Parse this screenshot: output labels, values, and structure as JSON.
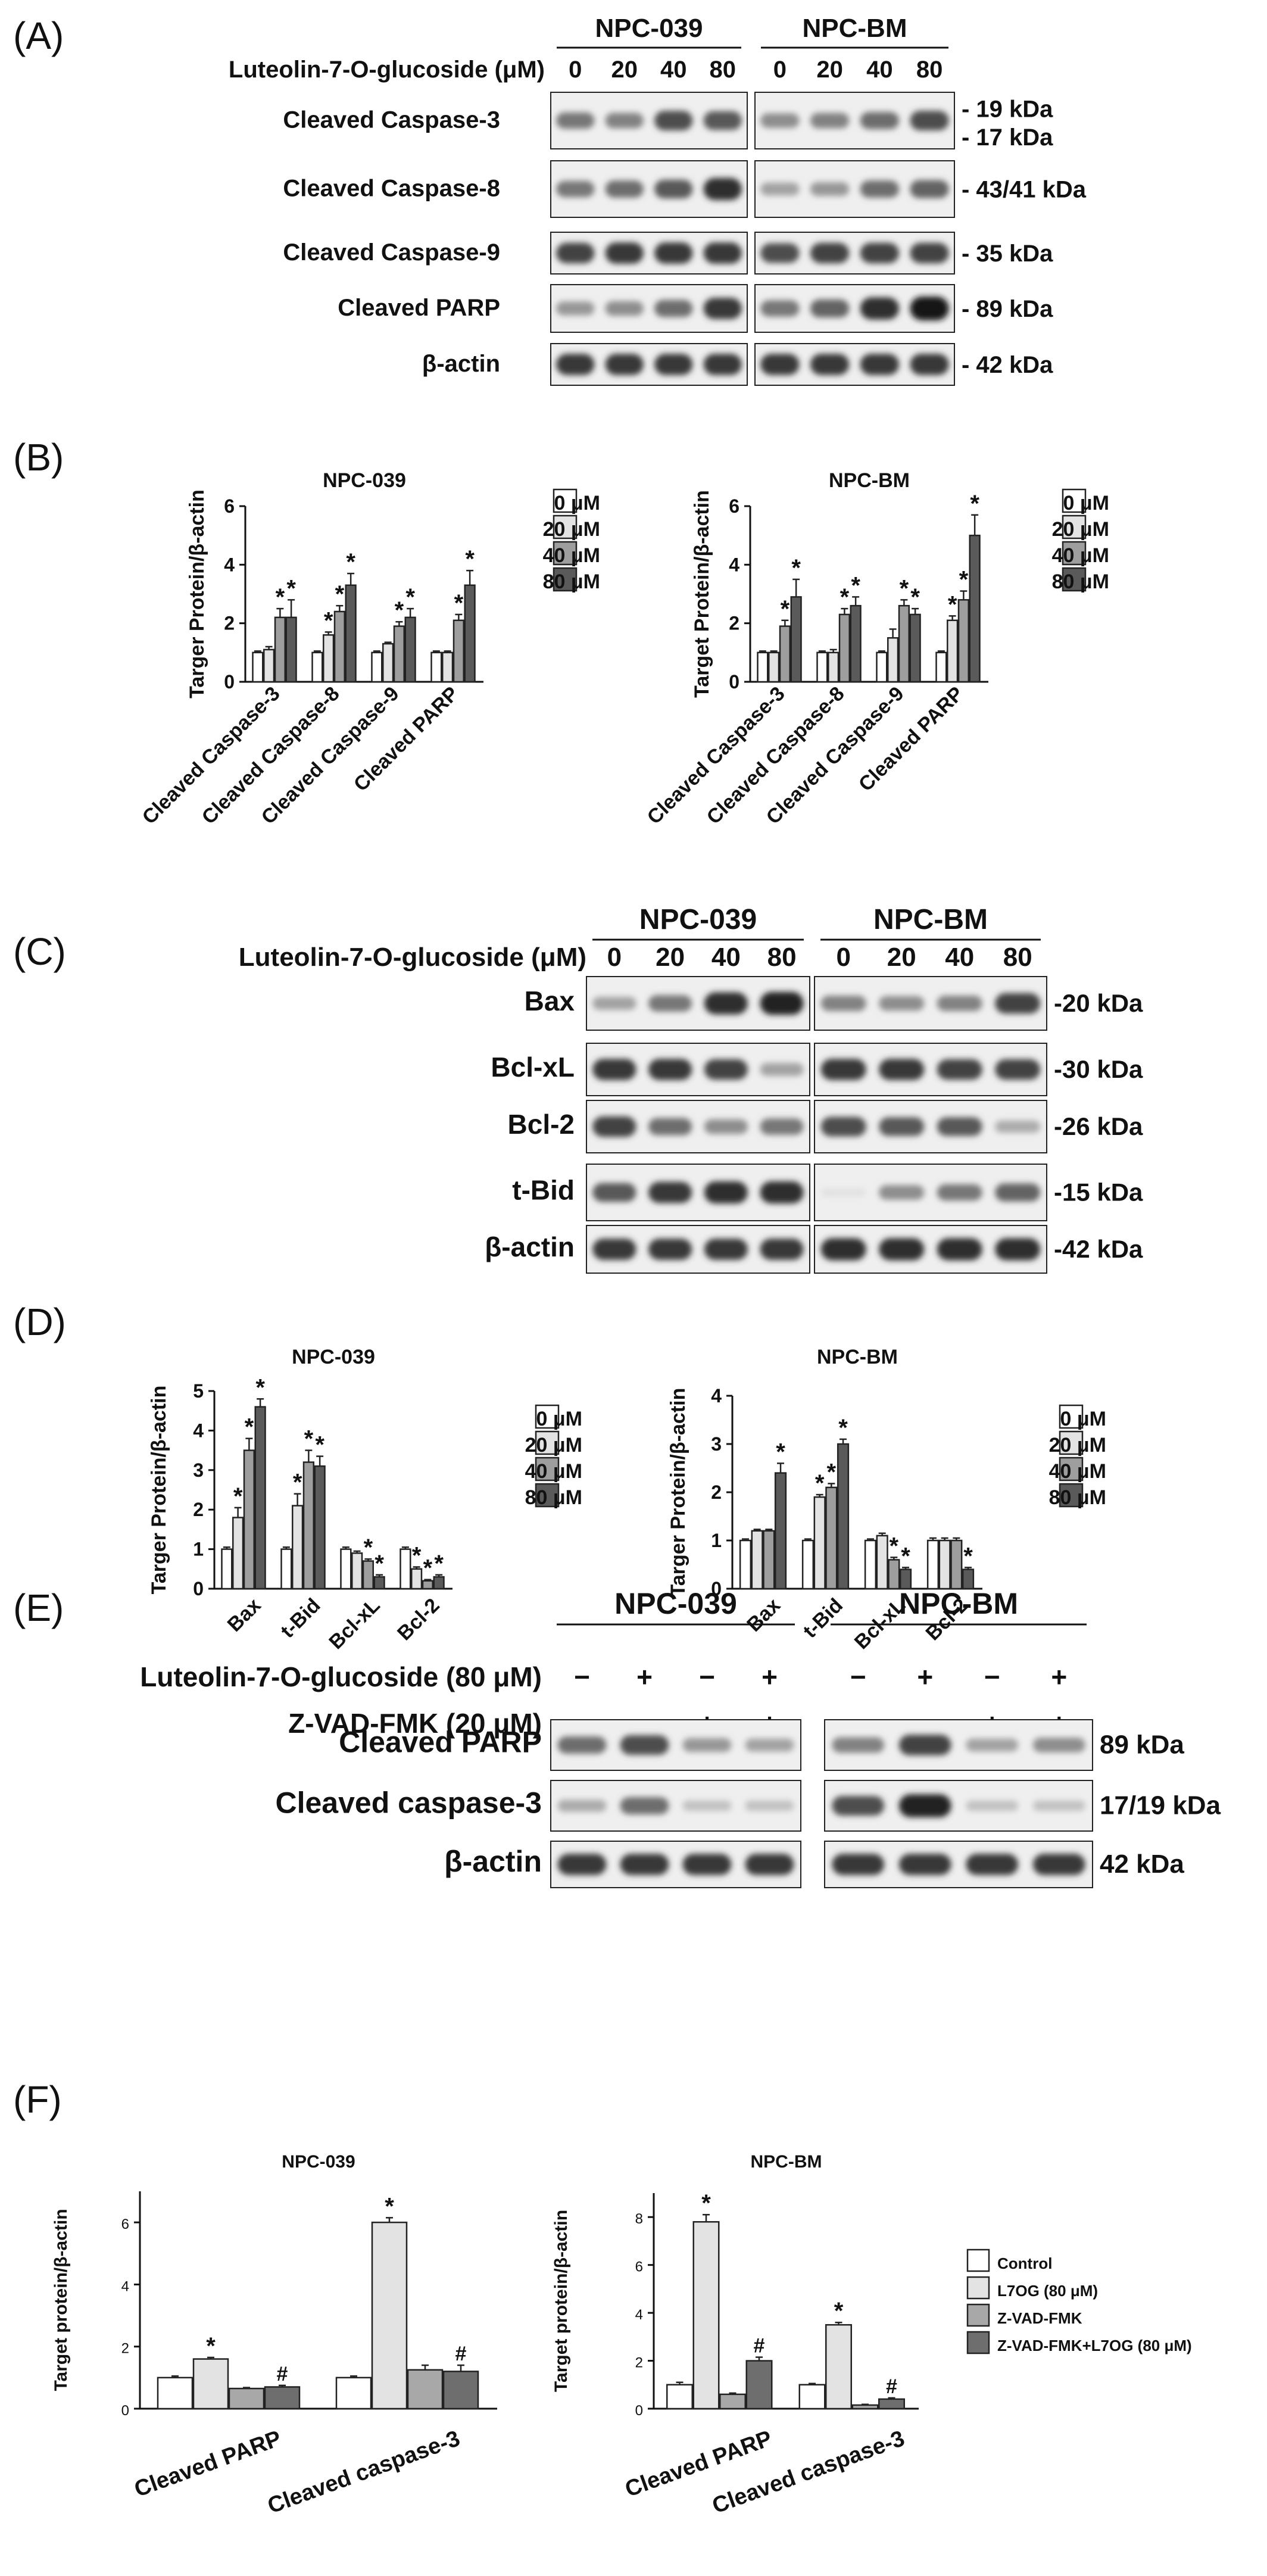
{
  "figure": {
    "panels": [
      {
        "id": "A",
        "type": "blot",
        "label": "(A)",
        "treatment": "Luteolin-7-O-glucoside (μM)",
        "groups": [
          "NPC-039",
          "NPC-BM"
        ],
        "conditions": [
          "0",
          "20",
          "40",
          "80"
        ],
        "rows": [
          {
            "name": "Cleaved Caspase-3",
            "mw": [
              "19 kDa",
              "17 kDa"
            ],
            "bands": [
              [
                0.55,
                0.5,
                0.75,
                0.7
              ],
              [
                0.45,
                0.5,
                0.6,
                0.75
              ]
            ]
          },
          {
            "name": "Cleaved Caspase-8",
            "mw": [
              "43/41 kDa"
            ],
            "bands": [
              [
                0.55,
                0.6,
                0.7,
                0.9
              ],
              [
                0.35,
                0.4,
                0.6,
                0.65
              ]
            ]
          },
          {
            "name": "Cleaved Caspase-9",
            "mw": [
              "35 kDa"
            ],
            "bands": [
              [
                0.8,
                0.85,
                0.85,
                0.85
              ],
              [
                0.75,
                0.8,
                0.8,
                0.8
              ]
            ]
          },
          {
            "name": "Cleaved PARP",
            "mw": [
              "89 kDa"
            ],
            "bands": [
              [
                0.4,
                0.45,
                0.6,
                0.85
              ],
              [
                0.55,
                0.65,
                0.9,
                1.0
              ]
            ]
          },
          {
            "name": "β-actin",
            "mw": [
              "42 kDa"
            ],
            "bands": [
              [
                0.85,
                0.85,
                0.85,
                0.85
              ],
              [
                0.85,
                0.85,
                0.85,
                0.85
              ]
            ]
          }
        ]
      },
      {
        "id": "C",
        "type": "blot",
        "label": "(C)",
        "treatment": "Luteolin-7-O-glucoside (μM)",
        "groups": [
          "NPC-039",
          "NPC-BM"
        ],
        "conditions": [
          "0",
          "20",
          "40",
          "80"
        ],
        "rows": [
          {
            "name": "Bax",
            "mw": [
              "-20 kDa"
            ],
            "bands": [
              [
                0.35,
                0.55,
                0.9,
                0.95
              ],
              [
                0.5,
                0.45,
                0.5,
                0.8
              ]
            ]
          },
          {
            "name": "Bcl-xL",
            "mw": [
              "-30 kDa"
            ],
            "bands": [
              [
                0.85,
                0.85,
                0.8,
                0.35
              ],
              [
                0.85,
                0.85,
                0.8,
                0.8
              ]
            ]
          },
          {
            "name": "Bcl-2",
            "mw": [
              "-26 kDa"
            ],
            "bands": [
              [
                0.8,
                0.6,
                0.45,
                0.55
              ],
              [
                0.75,
                0.7,
                0.7,
                0.3
              ]
            ]
          },
          {
            "name": "t-Bid",
            "mw": [
              "-15 kDa"
            ],
            "bands": [
              [
                0.7,
                0.85,
                0.9,
                0.9
              ],
              [
                0.05,
                0.45,
                0.55,
                0.65
              ]
            ]
          },
          {
            "name": "β-actin",
            "mw": [
              "-42 kDa"
            ],
            "bands": [
              [
                0.85,
                0.85,
                0.85,
                0.85
              ],
              [
                0.9,
                0.9,
                0.9,
                0.9
              ]
            ]
          }
        ]
      },
      {
        "id": "E",
        "type": "blot",
        "label": "(E)",
        "treatments": [
          {
            "name": "Luteolin-7-O-glucoside (80 μM)",
            "signs": [
              "−",
              "+",
              "−",
              "+"
            ]
          },
          {
            "name": "Z-VAD-FMK (20 μM)",
            "signs": [
              "−",
              "−",
              "+",
              "+"
            ]
          }
        ],
        "groups": [
          "NPC-039",
          "NPC-BM"
        ],
        "rows": [
          {
            "name": "Cleaved PARP",
            "mw": [
              "89 kDa"
            ],
            "bands": [
              [
                0.6,
                0.75,
                0.4,
                0.35
              ],
              [
                0.5,
                0.8,
                0.35,
                0.45
              ]
            ]
          },
          {
            "name": "Cleaved caspase-3",
            "mw": [
              "17/19 kDa"
            ],
            "bands": [
              [
                0.3,
                0.6,
                0.2,
                0.2
              ],
              [
                0.75,
                0.95,
                0.2,
                0.2
              ]
            ]
          },
          {
            "name": "β-actin",
            "mw": [
              "42 kDa"
            ],
            "bands": [
              [
                0.85,
                0.85,
                0.85,
                0.85
              ],
              [
                0.85,
                0.85,
                0.85,
                0.85
              ]
            ]
          }
        ]
      }
    ]
  },
  "chart_data": [
    {
      "panel": "(B)",
      "type": "bar",
      "title": "NPC-039",
      "ylabel": "Targer Protein/β-actin",
      "ylim": [
        0,
        6
      ],
      "yticks": [
        0,
        2,
        4,
        6
      ],
      "categories": [
        "Cleaved Caspase-3",
        "Cleaved Caspase-8",
        "Cleaved Caspase-9",
        "Cleaved PARP"
      ],
      "legend": [
        "0 μM",
        "20 μM",
        "40 μM",
        "80 μM"
      ],
      "colors": [
        "#ffffff",
        "#e3e3e3",
        "#9e9e9e",
        "#5a5a5a"
      ],
      "values": [
        [
          1.0,
          1.1,
          2.2,
          2.2
        ],
        [
          1.0,
          1.6,
          2.4,
          3.3
        ],
        [
          1.0,
          1.3,
          1.9,
          2.2
        ],
        [
          1.0,
          1.0,
          2.1,
          3.3
        ]
      ],
      "errors": [
        [
          0.05,
          0.1,
          0.3,
          0.6
        ],
        [
          0.05,
          0.1,
          0.2,
          0.4
        ],
        [
          0.05,
          0.05,
          0.15,
          0.3
        ],
        [
          0.05,
          0.05,
          0.2,
          0.5
        ]
      ],
      "stars": [
        [
          false,
          false,
          true,
          true
        ],
        [
          false,
          true,
          true,
          true
        ],
        [
          false,
          false,
          true,
          true
        ],
        [
          false,
          false,
          true,
          true
        ]
      ],
      "star_symbol": "*",
      "legend_placement": "right"
    },
    {
      "panel": "",
      "type": "bar",
      "title": "NPC-BM",
      "ylabel": "Target Protein/β-actin",
      "ylim": [
        0,
        6
      ],
      "yticks": [
        0,
        2,
        4,
        6
      ],
      "categories": [
        "Cleaved Caspase-3",
        "Cleaved Caspase-8",
        "Cleaved Caspase-9",
        "Cleaved PARP"
      ],
      "legend": [
        "0 μM",
        "20 μM",
        "40 μM",
        "80 μM"
      ],
      "colors": [
        "#ffffff",
        "#e3e3e3",
        "#9e9e9e",
        "#5a5a5a"
      ],
      "values": [
        [
          1.0,
          1.0,
          1.9,
          2.9
        ],
        [
          1.0,
          1.0,
          2.3,
          2.6
        ],
        [
          1.0,
          1.5,
          2.6,
          2.3
        ],
        [
          1.0,
          2.1,
          2.8,
          5.0
        ]
      ],
      "errors": [
        [
          0.05,
          0.05,
          0.2,
          0.6
        ],
        [
          0.05,
          0.1,
          0.2,
          0.3
        ],
        [
          0.05,
          0.3,
          0.2,
          0.2
        ],
        [
          0.05,
          0.15,
          0.3,
          0.7
        ]
      ],
      "stars": [
        [
          false,
          false,
          true,
          true
        ],
        [
          false,
          false,
          true,
          true
        ],
        [
          false,
          false,
          true,
          true
        ],
        [
          false,
          true,
          true,
          true
        ]
      ],
      "star_symbol": "*",
      "legend_placement": "right"
    },
    {
      "panel": "(D)",
      "type": "bar",
      "title": "NPC-039",
      "ylabel": "Targer Protein/β-actin",
      "ylim": [
        0,
        5
      ],
      "yticks": [
        0,
        1,
        2,
        3,
        4,
        5
      ],
      "categories": [
        "Bax",
        "t-Bid",
        "Bcl-xL",
        "Bcl-2"
      ],
      "legend": [
        "0 μM",
        "20 μM",
        "40 μM",
        "80 μM"
      ],
      "colors": [
        "#ffffff",
        "#e3e3e3",
        "#9e9e9e",
        "#5a5a5a"
      ],
      "values": [
        [
          1.0,
          1.8,
          3.5,
          4.6
        ],
        [
          1.0,
          2.1,
          3.2,
          3.1
        ],
        [
          1.0,
          0.9,
          0.7,
          0.3
        ],
        [
          1.0,
          0.5,
          0.2,
          0.3
        ]
      ],
      "errors": [
        [
          0.05,
          0.25,
          0.3,
          0.2
        ],
        [
          0.05,
          0.3,
          0.3,
          0.25
        ],
        [
          0.05,
          0.05,
          0.05,
          0.05
        ],
        [
          0.05,
          0.05,
          0.03,
          0.05
        ]
      ],
      "stars": [
        [
          false,
          true,
          true,
          true
        ],
        [
          false,
          true,
          true,
          true
        ],
        [
          false,
          false,
          true,
          true
        ],
        [
          false,
          true,
          true,
          true
        ]
      ],
      "star_symbol": "*",
      "legend_placement": "right"
    },
    {
      "panel": "",
      "type": "bar",
      "title": "NPC-BM",
      "ylabel": "Targer Protein/β-actin",
      "ylim": [
        0,
        4
      ],
      "yticks": [
        0,
        1,
        2,
        3,
        4
      ],
      "categories": [
        "Bax",
        "t-Bid",
        "Bcl-xL",
        "Bcl-2"
      ],
      "legend": [
        "0 μM",
        "20 μM",
        "40 μM",
        "80 μM"
      ],
      "colors": [
        "#ffffff",
        "#e3e3e3",
        "#9e9e9e",
        "#5a5a5a"
      ],
      "values": [
        [
          1.0,
          1.2,
          1.2,
          2.4
        ],
        [
          1.0,
          1.9,
          2.1,
          3.0
        ],
        [
          1.0,
          1.1,
          0.6,
          0.4
        ],
        [
          1.0,
          1.0,
          1.0,
          0.4
        ]
      ],
      "errors": [
        [
          0.03,
          0.03,
          0.03,
          0.2
        ],
        [
          0.03,
          0.05,
          0.08,
          0.1
        ],
        [
          0.03,
          0.05,
          0.05,
          0.04
        ],
        [
          0.05,
          0.05,
          0.05,
          0.04
        ]
      ],
      "stars": [
        [
          false,
          false,
          false,
          true
        ],
        [
          false,
          true,
          true,
          true
        ],
        [
          false,
          false,
          true,
          true
        ],
        [
          false,
          false,
          false,
          true
        ]
      ],
      "star_symbol": "*",
      "legend_placement": "right"
    },
    {
      "panel": "(F)",
      "type": "bar",
      "title": "NPC-039",
      "ylabel": "Target protein/β-actin",
      "ylim": [
        0,
        7
      ],
      "yticks": [
        0,
        2,
        4,
        6
      ],
      "categories": [
        "Cleaved PARP",
        "Cleaved caspase-3"
      ],
      "legend": [
        "Control",
        "L7OG (80 μM)",
        "Z-VAD-FMK",
        "Z-VAD-FMK+L7OG (80 μM)"
      ],
      "colors": [
        "#ffffff",
        "#e3e3e3",
        "#a8a8a8",
        "#6e6e6e"
      ],
      "values": [
        [
          1.0,
          1.6,
          0.65,
          0.7
        ],
        [
          1.0,
          6.0,
          1.25,
          1.2
        ]
      ],
      "errors": [
        [
          0.05,
          0.05,
          0.03,
          0.05
        ],
        [
          0.05,
          0.15,
          0.15,
          0.2
        ]
      ],
      "stars": [
        [
          false,
          true,
          false,
          false
        ],
        [
          false,
          true,
          false,
          false
        ]
      ],
      "hashes": [
        [
          false,
          false,
          false,
          true
        ],
        [
          false,
          false,
          false,
          true
        ]
      ],
      "star_symbol": "*",
      "hash_symbol": "#",
      "legend_placement": "right"
    },
    {
      "panel": "",
      "type": "bar",
      "title": "NPC-BM",
      "ylabel": "Target protein/β-actin",
      "ylim": [
        0,
        9
      ],
      "yticks": [
        0,
        2,
        4,
        6,
        8
      ],
      "categories": [
        "Cleaved PARP",
        "Cleaved caspase-3"
      ],
      "legend": [
        "Control",
        "L7OG (80 μM)",
        "Z-VAD-FMK",
        "Z-VAD-FMK+L7OG (80 μM)"
      ],
      "colors": [
        "#ffffff",
        "#e3e3e3",
        "#a8a8a8",
        "#6e6e6e"
      ],
      "values": [
        [
          1.0,
          7.8,
          0.6,
          2.0
        ],
        [
          1.0,
          3.5,
          0.15,
          0.4
        ]
      ],
      "errors": [
        [
          0.1,
          0.3,
          0.05,
          0.15
        ],
        [
          0.05,
          0.1,
          0.03,
          0.05
        ]
      ],
      "stars": [
        [
          false,
          true,
          false,
          false
        ],
        [
          false,
          true,
          false,
          false
        ]
      ],
      "hashes": [
        [
          false,
          false,
          false,
          true
        ],
        [
          false,
          false,
          false,
          true
        ]
      ],
      "star_symbol": "*",
      "hash_symbol": "#",
      "legend_placement": "right"
    }
  ]
}
